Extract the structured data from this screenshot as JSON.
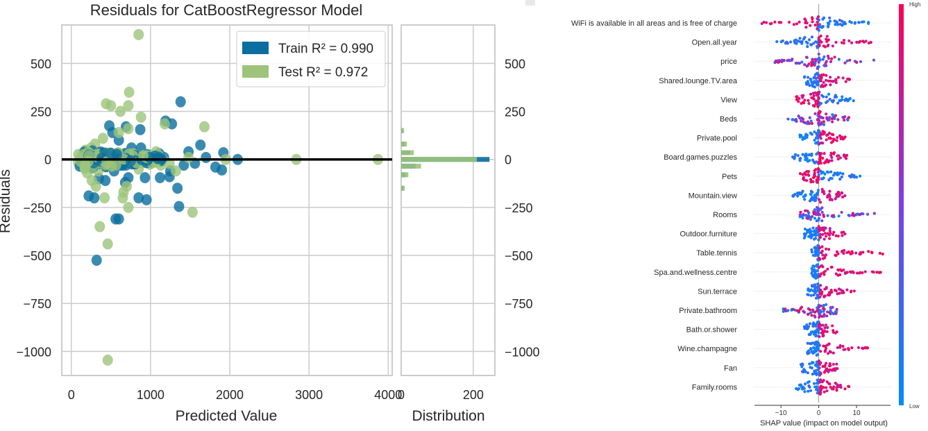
{
  "colors": {
    "train": "#0a6e9e",
    "test": "#9cc47a",
    "zero_line": "#000000",
    "grid": "#cccccc",
    "shap_high": "#ff0052",
    "shap_low": "#008bfb"
  },
  "chart_data": [
    {
      "type": "scatter",
      "title": "Residuals for CatBoostRegressor Model",
      "xlabel": "Predicted Value",
      "ylabel": "Residuals",
      "xlim": [
        -120,
        4050
      ],
      "ylim": [
        -1125,
        700
      ],
      "xticks": [
        0,
        1000,
        2000,
        3000,
        4000
      ],
      "xtick_labels": [
        "0",
        "1000",
        "2000",
        "3000",
        "4000"
      ],
      "yticks": [
        500,
        250,
        0,
        -250,
        -500,
        -750,
        -1000
      ],
      "ytick_labels": [
        "500",
        "250",
        "0",
        "−250",
        "−500",
        "−750",
        "−1000"
      ],
      "grid": true,
      "legend": "top-right",
      "legend_entries": [
        {
          "label": "Train R² = 0.990",
          "series": "train"
        },
        {
          "label": "Test R² = 0.972",
          "series": "test"
        }
      ],
      "series": [
        {
          "name": "Train",
          "key": "train",
          "points": [
            [
              1380,
              300
            ],
            [
              1190,
              200
            ],
            [
              1270,
              185
            ],
            [
              1630,
              75
            ],
            [
              1920,
              35
            ],
            [
              2100,
              0
            ],
            [
              1820,
              -40
            ],
            [
              1900,
              -55
            ],
            [
              1560,
              -20
            ],
            [
              1420,
              -30
            ],
            [
              1250,
              -60
            ],
            [
              1240,
              -90
            ],
            [
              1120,
              -95
            ],
            [
              1340,
              -150
            ],
            [
              1360,
              -245
            ],
            [
              1060,
              15
            ],
            [
              960,
              25
            ],
            [
              880,
              60
            ],
            [
              870,
              155
            ],
            [
              930,
              -95
            ],
            [
              850,
              -200
            ],
            [
              950,
              -210
            ],
            [
              720,
              -95
            ],
            [
              680,
              -120
            ],
            [
              560,
              -310
            ],
            [
              600,
              -310
            ],
            [
              320,
              -525
            ],
            [
              290,
              -200
            ],
            [
              220,
              -190
            ],
            [
              480,
              175
            ],
            [
              520,
              140
            ],
            [
              600,
              100
            ],
            [
              760,
              60
            ],
            [
              690,
              170
            ],
            [
              1020,
              5
            ],
            [
              1110,
              30
            ],
            [
              1170,
              10
            ],
            [
              780,
              20
            ],
            [
              650,
              -30
            ],
            [
              540,
              -60
            ],
            [
              430,
              -110
            ],
            [
              350,
              -100
            ],
            [
              1480,
              40
            ],
            [
              1700,
              10
            ]
          ]
        },
        {
          "name": "Test",
          "key": "test",
          "points": [
            [
              850,
              650
            ],
            [
              730,
              350
            ],
            [
              440,
              290
            ],
            [
              500,
              280
            ],
            [
              720,
              280
            ],
            [
              620,
              250
            ],
            [
              880,
              220
            ],
            [
              1180,
              185
            ],
            [
              1680,
              170
            ],
            [
              720,
              160
            ],
            [
              600,
              140
            ],
            [
              400,
              110
            ],
            [
              300,
              80
            ],
            [
              250,
              60
            ],
            [
              180,
              40
            ],
            [
              140,
              20
            ],
            [
              120,
              -10
            ],
            [
              150,
              -40
            ],
            [
              200,
              -70
            ],
            [
              260,
              -110
            ],
            [
              310,
              -140
            ],
            [
              420,
              -200
            ],
            [
              650,
              -200
            ],
            [
              720,
              -250
            ],
            [
              850,
              -50
            ],
            [
              990,
              -25
            ],
            [
              1130,
              -30
            ],
            [
              1320,
              -60
            ],
            [
              1530,
              -275
            ],
            [
              1070,
              40
            ],
            [
              1240,
              -20
            ],
            [
              2840,
              0
            ],
            [
              3870,
              0
            ],
            [
              360,
              -350
            ],
            [
              460,
              -440
            ],
            [
              460,
              -1045
            ],
            [
              560,
              -15
            ],
            [
              650,
              10
            ],
            [
              780,
              30
            ],
            [
              930,
              -10
            ],
            [
              1480,
              10
            ],
            [
              1950,
              0
            ],
            [
              660,
              -170
            ],
            [
              700,
              -140
            ],
            [
              340,
              -60
            ],
            [
              380,
              30
            ],
            [
              450,
              5
            ],
            [
              520,
              -20
            ]
          ]
        }
      ]
    },
    {
      "type": "bar",
      "xlabel": "Distribution",
      "xticks": [
        0,
        200
      ],
      "xtick_labels": [
        "0",
        "200"
      ],
      "ytick_labels": [
        "500",
        "250",
        "0",
        "−250",
        "−500",
        "−750",
        "−1000"
      ],
      "orientation": "horizontal",
      "series": [
        {
          "name": "Train",
          "key": "train",
          "bins": [
            [
              0,
              245
            ],
            [
              -35,
              40
            ],
            [
              35,
              25
            ],
            [
              -80,
              12
            ],
            [
              80,
              10
            ],
            [
              -150,
              6
            ],
            [
              150,
              5
            ]
          ]
        },
        {
          "name": "Test",
          "key": "test",
          "bins": [
            [
              0,
              210
            ],
            [
              -35,
              55
            ],
            [
              35,
              35
            ],
            [
              -80,
              20
            ],
            [
              80,
              16
            ],
            [
              -150,
              10
            ],
            [
              150,
              8
            ]
          ]
        }
      ]
    },
    {
      "type": "scatter",
      "xlabel": "SHAP value (impact on model output)",
      "xlim": [
        -17,
        19
      ],
      "xticks": [
        -10,
        0,
        10
      ],
      "xtick_labels": [
        "−10",
        "0",
        "10"
      ],
      "colorbar": {
        "high_label": "High",
        "low_label": "Low"
      },
      "features": [
        {
          "name": "WiFi is available in all areas and is free of charge",
          "span": [
            -15.5,
            14
          ],
          "skew": -1
        },
        {
          "name": "Open.all.year",
          "span": [
            -11.5,
            14
          ],
          "skew": 1
        },
        {
          "name": "price",
          "span": [
            -12.5,
            16
          ],
          "skew": 0
        },
        {
          "name": "Shared.lounge.TV.area",
          "span": [
            -4,
            10
          ],
          "skew": 1
        },
        {
          "name": "View",
          "span": [
            -6,
            10
          ],
          "skew": -1
        },
        {
          "name": "Beds",
          "span": [
            -8.5,
            8
          ],
          "skew": 0
        },
        {
          "name": "Private.pool",
          "span": [
            -5,
            7
          ],
          "skew": 1
        },
        {
          "name": "Board.games.puzzles",
          "span": [
            -7,
            8
          ],
          "skew": 1
        },
        {
          "name": "Pets",
          "span": [
            -5,
            11
          ],
          "skew": -1
        },
        {
          "name": "Mountain.view",
          "span": [
            -7,
            7
          ],
          "skew": 1
        },
        {
          "name": "Rooms",
          "span": [
            -5,
            15
          ],
          "skew": 0
        },
        {
          "name": "Outdoor.furniture",
          "span": [
            -4,
            7
          ],
          "skew": 1
        },
        {
          "name": "Table.tennis",
          "span": [
            -2,
            17
          ],
          "skew": 1
        },
        {
          "name": "Spa.and.wellness.centre",
          "span": [
            -2,
            18
          ],
          "skew": 1
        },
        {
          "name": "Sun.terrace",
          "span": [
            -3,
            10
          ],
          "skew": 1
        },
        {
          "name": "Private.bathroom",
          "span": [
            -10,
            5
          ],
          "skew": 0
        },
        {
          "name": "Bath.or.shower",
          "span": [
            -4,
            5
          ],
          "skew": 1
        },
        {
          "name": "Wine.champagne",
          "span": [
            -3,
            13
          ],
          "skew": 1
        },
        {
          "name": "Fan",
          "span": [
            -5,
            5
          ],
          "skew": 1
        },
        {
          "name": "Family.rooms",
          "span": [
            -6,
            8
          ],
          "skew": 1
        }
      ]
    }
  ]
}
